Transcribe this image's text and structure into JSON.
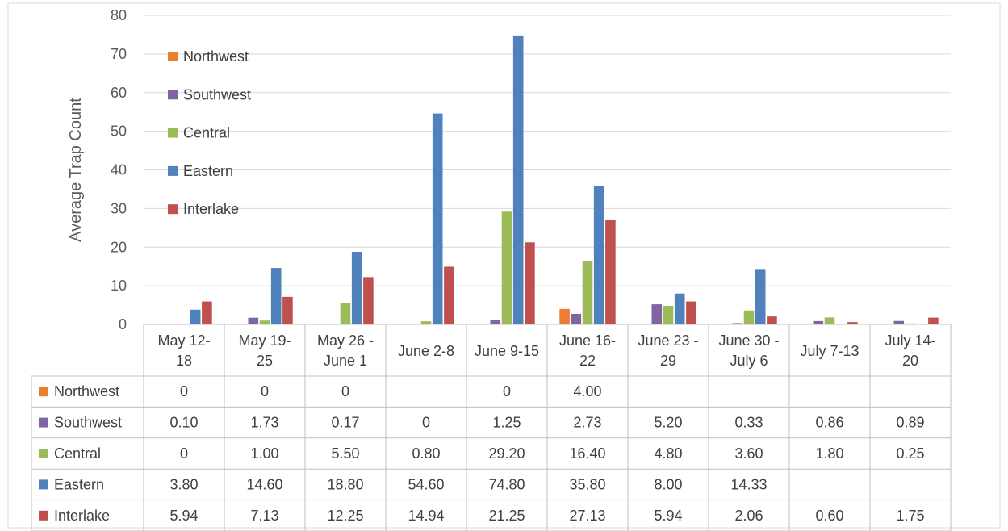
{
  "chart_data": {
    "type": "bar",
    "title": "",
    "xlabel": "",
    "ylabel": "Average Trap Count",
    "ylim": [
      0,
      80
    ],
    "yticks": [
      0,
      10,
      20,
      30,
      40,
      50,
      60,
      70,
      80
    ],
    "grid": true,
    "legend_position": "top-left",
    "categories": [
      [
        "May 12-",
        "18"
      ],
      [
        "May 19-",
        "25"
      ],
      [
        "May 26 -",
        "June 1"
      ],
      [
        "June 2-8"
      ],
      [
        "June 9-15"
      ],
      [
        "June 16-",
        "22"
      ],
      [
        "June 23 -",
        "29"
      ],
      [
        "June 30 -",
        "July 6"
      ],
      [
        "July 7-13"
      ],
      [
        "July 14-",
        "20"
      ]
    ],
    "series": [
      {
        "name": "Northwest",
        "color": "#ED7D31",
        "values": [
          0,
          0,
          0,
          null,
          0,
          4.0,
          null,
          null,
          null,
          null
        ],
        "labels": [
          "0",
          "0",
          "0",
          "",
          "0",
          "4.00",
          "",
          "",
          "",
          ""
        ]
      },
      {
        "name": "Southwest",
        "color": "#8064A2",
        "values": [
          0.1,
          1.73,
          0.17,
          0,
          1.25,
          2.73,
          5.2,
          0.33,
          0.86,
          0.89
        ],
        "labels": [
          "0.10",
          "1.73",
          "0.17",
          "0",
          "1.25",
          "2.73",
          "5.20",
          "0.33",
          "0.86",
          "0.89"
        ]
      },
      {
        "name": "Central",
        "color": "#9BBB59",
        "values": [
          0,
          1.0,
          5.5,
          0.8,
          29.2,
          16.4,
          4.8,
          3.6,
          1.8,
          0.25
        ],
        "labels": [
          "0",
          "1.00",
          "5.50",
          "0.80",
          "29.20",
          "16.40",
          "4.80",
          "3.60",
          "1.80",
          "0.25"
        ]
      },
      {
        "name": "Eastern",
        "color": "#4F81BD",
        "values": [
          3.8,
          14.6,
          18.8,
          54.6,
          74.8,
          35.8,
          8.0,
          14.33,
          null,
          null
        ],
        "labels": [
          "3.80",
          "14.60",
          "18.80",
          "54.60",
          "74.80",
          "35.80",
          "8.00",
          "14.33",
          "",
          ""
        ]
      },
      {
        "name": "Interlake",
        "color": "#C0504D",
        "values": [
          5.94,
          7.13,
          12.25,
          14.94,
          21.25,
          27.13,
          5.94,
          2.06,
          0.6,
          1.75
        ],
        "labels": [
          "5.94",
          "7.13",
          "12.25",
          "14.94",
          "21.25",
          "27.13",
          "5.94",
          "2.06",
          "0.60",
          "1.75"
        ]
      }
    ]
  }
}
